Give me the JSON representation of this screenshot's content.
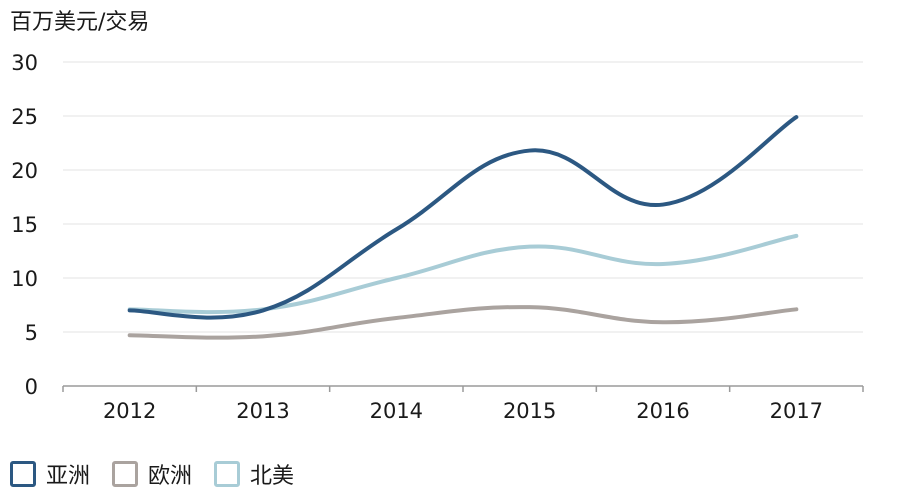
{
  "chart_data": {
    "type": "line",
    "ylabel": "百万美元/交易",
    "categories": [
      "2012",
      "2013",
      "2014",
      "2015",
      "2016",
      "2017"
    ],
    "ylim": [
      0,
      30
    ],
    "yticks": [
      0,
      5,
      10,
      15,
      20,
      25,
      30
    ],
    "grid": true,
    "legend_position": "bottom-left",
    "series": [
      {
        "name": "亚洲",
        "color": "#2c5882",
        "values": [
          7.0,
          7.0,
          14.5,
          21.8,
          16.8,
          24.9
        ]
      },
      {
        "name": "欧洲",
        "color": "#aaa39f",
        "values": [
          4.7,
          4.6,
          6.3,
          7.3,
          5.9,
          7.1
        ]
      },
      {
        "name": "北美",
        "color": "#a8ccd6",
        "values": [
          7.1,
          7.1,
          10.0,
          12.9,
          11.3,
          13.9
        ]
      }
    ]
  }
}
